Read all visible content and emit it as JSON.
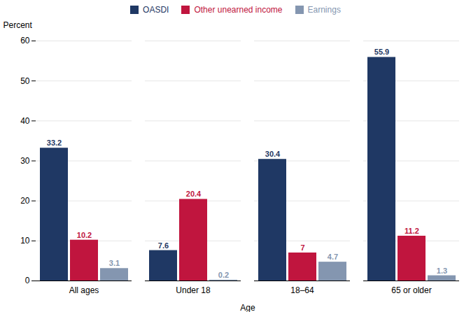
{
  "chart_data": {
    "type": "bar",
    "categories": [
      "All ages",
      "Under 18",
      "18–64",
      "65 or older"
    ],
    "series": [
      {
        "name": "OASDI",
        "color": "#1f3864",
        "values": [
          33.2,
          7.6,
          30.4,
          55.9
        ]
      },
      {
        "name": "Other unearned income",
        "color": "#c0153e",
        "values": [
          10.2,
          20.4,
          7.0,
          11.2
        ]
      },
      {
        "name": "Earnings",
        "color": "#8496b0",
        "values": [
          3.1,
          0.2,
          4.7,
          1.3
        ]
      }
    ],
    "xlabel": "Age",
    "ylabel": "Percent",
    "ylim": [
      0,
      60
    ],
    "yticks": [
      0,
      10,
      20,
      30,
      40,
      50,
      60
    ],
    "grid": true,
    "legend": "top",
    "data_labels": true
  }
}
